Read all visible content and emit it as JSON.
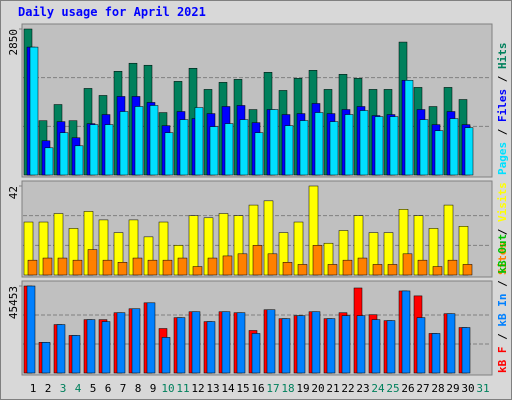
{
  "title": "Daily usage for April 2021",
  "days": {
    "categories": [
      "1",
      "2",
      "3",
      "4",
      "5",
      "6",
      "7",
      "8",
      "9",
      "10",
      "11",
      "12",
      "13",
      "14",
      "15",
      "16",
      "17",
      "18",
      "19",
      "20",
      "21",
      "22",
      "23",
      "24",
      "25",
      "26",
      "27",
      "28",
      "29",
      "30",
      "31"
    ],
    "colors": [
      "#000000",
      "#000000",
      "#00805c",
      "#00805c",
      "#000000",
      "#000000",
      "#000000",
      "#000000",
      "#000000",
      "#00805c",
      "#00805c",
      "#000000",
      "#000000",
      "#000000",
      "#000000",
      "#000000",
      "#00805c",
      "#00805c",
      "#000000",
      "#000000",
      "#000000",
      "#000000",
      "#000000",
      "#00805c",
      "#00805c",
      "#000000",
      "#000000",
      "#000000",
      "#000000",
      "#000000",
      "#00805c"
    ]
  },
  "legend_separator": " / ",
  "chart_data": [
    {
      "type": "bar",
      "ylim": [
        0,
        2850
      ],
      "yticks": [
        2850
      ],
      "legend_reversed": true,
      "series": [
        {
          "name": "Hits",
          "color": "#00805c",
          "values": [
            2850,
            1061,
            1376,
            1061,
            1690,
            1553,
            2025,
            2182,
            2143,
            1219,
            1828,
            2084,
            1671,
            1809,
            1867,
            1278,
            2005,
            1651,
            1887,
            2044,
            1671,
            1966,
            1887,
            1671,
            1671,
            2595,
            1710,
            1337,
            1710,
            1474,
            null
          ]
        },
        {
          "name": "Files",
          "color": "#0000ff",
          "values": [
            2497,
            668,
            1042,
            727,
            1003,
            1180,
            1533,
            1533,
            1416,
            963,
            1239,
            1101,
            1199,
            1337,
            1357,
            1022,
            1278,
            1180,
            1199,
            1396,
            1199,
            1278,
            1337,
            1160,
            1180,
            1848,
            1278,
            983,
            1239,
            983,
            null
          ]
        },
        {
          "name": "Pages",
          "color": "#00e0ff",
          "values": [
            2497,
            531,
            826,
            570,
            983,
            983,
            1239,
            1337,
            1357,
            826,
            1081,
            1317,
            944,
            1003,
            1081,
            826,
            1278,
            963,
            1062,
            1219,
            1042,
            1180,
            1258,
            1140,
            1140,
            1848,
            1081,
            865,
            1101,
            924,
            null
          ]
        }
      ]
    },
    {
      "type": "bar",
      "ylim": [
        0,
        42
      ],
      "yticks": [
        42
      ],
      "legend_reversed": true,
      "series": [
        {
          "name": "Visits",
          "color": "#ffff00",
          "values": [
            25,
            25,
            29,
            22,
            30,
            26,
            20,
            26,
            18,
            25,
            14,
            28,
            27,
            29,
            28,
            33,
            35,
            20,
            25,
            42,
            15,
            21,
            28,
            20,
            20,
            31,
            28,
            22,
            33,
            23,
            null
          ]
        },
        {
          "name": "Sites",
          "color": "#ff8000",
          "values": [
            7,
            8,
            8,
            7,
            12,
            7,
            6,
            8,
            7,
            7,
            8,
            4,
            8,
            9,
            10,
            14,
            10,
            6,
            5,
            14,
            5,
            7,
            8,
            5,
            5,
            10,
            7,
            4,
            7,
            5,
            null
          ]
        }
      ]
    },
    {
      "type": "bar",
      "ylim": [
        0,
        45453
      ],
      "yticks": [
        45453
      ],
      "legend_reversed": false,
      "series": [
        {
          "name": "kB F",
          "color": "#ff0000",
          "values": [
            45453,
            16012,
            25309,
            19627,
            27891,
            27891,
            31507,
            33573,
            36672,
            23243,
            28924,
            32023,
            26858,
            32023,
            31507,
            22210,
            33056,
            28408,
            29957,
            32023,
            28408,
            31507,
            44419,
            30474,
            27375,
            42870,
            40287,
            20660,
            30990,
            23759,
            null
          ]
        },
        {
          "name": "kB In",
          "color": "#0080ff",
          "values": [
            45453,
            16012,
            25309,
            19627,
            27891,
            26858,
            31507,
            33573,
            36672,
            18594,
            28924,
            32023,
            26858,
            32023,
            31507,
            20660,
            33056,
            28408,
            29957,
            32023,
            28408,
            29957,
            29957,
            27891,
            27375,
            42870,
            28924,
            20660,
            30990,
            23759,
            null
          ]
        },
        {
          "name": "kB Out",
          "color": "#00c000",
          "values": [
            0,
            0,
            0,
            0,
            0,
            0,
            0,
            0,
            0,
            0,
            0,
            0,
            0,
            0,
            0,
            0,
            0,
            0,
            0,
            0,
            0,
            0,
            0,
            0,
            0,
            0,
            0,
            0,
            0,
            0,
            null
          ]
        }
      ]
    }
  ]
}
